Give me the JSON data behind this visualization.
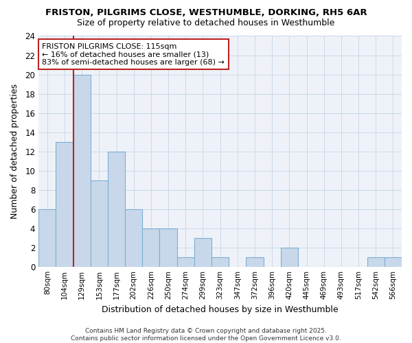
{
  "title1": "FRISTON, PILGRIMS CLOSE, WESTHUMBLE, DORKING, RH5 6AR",
  "title2": "Size of property relative to detached houses in Westhumble",
  "xlabel": "Distribution of detached houses by size in Westhumble",
  "ylabel": "Number of detached properties",
  "categories": [
    "80sqm",
    "104sqm",
    "129sqm",
    "153sqm",
    "177sqm",
    "202sqm",
    "226sqm",
    "250sqm",
    "274sqm",
    "299sqm",
    "323sqm",
    "347sqm",
    "372sqm",
    "396sqm",
    "420sqm",
    "445sqm",
    "469sqm",
    "493sqm",
    "517sqm",
    "542sqm",
    "566sqm"
  ],
  "values": [
    6,
    13,
    20,
    9,
    12,
    6,
    4,
    4,
    1,
    3,
    1,
    0,
    1,
    0,
    2,
    0,
    0,
    0,
    0,
    1,
    1
  ],
  "bar_color": "#c8d8ea",
  "bar_edge_color": "#7baed4",
  "vline_x_index": 1,
  "vline_color": "#bb2222",
  "annotation_text": "FRISTON PILGRIMS CLOSE: 115sqm\n← 16% of detached houses are smaller (13)\n83% of semi-detached houses are larger (68) →",
  "annotation_box_color": "#ffffff",
  "annotation_box_edge": "#bb2222",
  "ylim": [
    0,
    24
  ],
  "yticks": [
    0,
    2,
    4,
    6,
    8,
    10,
    12,
    14,
    16,
    18,
    20,
    22,
    24
  ],
  "grid_color": "#c5d5e8",
  "background_color": "#ffffff",
  "plot_bg_color": "#eef2f8",
  "footnote": "Contains HM Land Registry data © Crown copyright and database right 2025.\nContains public sector information licensed under the Open Government Licence v3.0."
}
